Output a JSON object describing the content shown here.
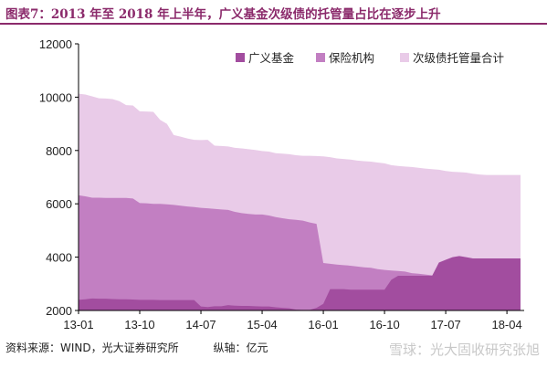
{
  "title": "图表7：2013 年至 2018 年上半年，广义基金次级债的托管量占比在逐步上升",
  "footer": {
    "source": "资料来源：WIND，光大证券研究所",
    "unit": "纵轴：亿元"
  },
  "watermark": "雪球：光大固收研究张旭",
  "colors": {
    "broad_fund": "#a24d9f",
    "insurance": "#c27fc2",
    "total": "#e9cbe8",
    "title": "#8b2a6b"
  },
  "chart_data": {
    "type": "area",
    "title": "",
    "xlabel": "",
    "ylabel": "",
    "ylim": [
      2000,
      12000
    ],
    "yticks": [
      2000,
      4000,
      6000,
      8000,
      10000,
      12000
    ],
    "x_ticklabels": [
      "13-01",
      "13-10",
      "14-07",
      "15-04",
      "16-01",
      "16-10",
      "17-07",
      "18-04"
    ],
    "x_tick_index": [
      0,
      9,
      18,
      27,
      36,
      45,
      54,
      63
    ],
    "legend": "top-right",
    "x": [
      "13-01",
      "13-02",
      "13-03",
      "13-04",
      "13-05",
      "13-06",
      "13-07",
      "13-08",
      "13-09",
      "13-10",
      "13-11",
      "13-12",
      "14-01",
      "14-02",
      "14-03",
      "14-04",
      "14-05",
      "14-06",
      "14-07",
      "14-08",
      "14-09",
      "14-10",
      "14-11",
      "14-12",
      "15-01",
      "15-02",
      "15-03",
      "15-04",
      "15-05",
      "15-06",
      "15-07",
      "15-08",
      "15-09",
      "15-10",
      "15-11",
      "15-12",
      "16-01",
      "16-02",
      "16-03",
      "16-04",
      "16-05",
      "16-06",
      "16-07",
      "16-08",
      "16-09",
      "16-10",
      "16-11",
      "16-12",
      "17-01",
      "17-02",
      "17-03",
      "17-04",
      "17-05",
      "17-06",
      "17-07",
      "17-08",
      "17-09",
      "17-10",
      "17-11",
      "17-12",
      "18-01",
      "18-02",
      "18-03",
      "18-04",
      "18-05",
      "18-06"
    ],
    "series": [
      {
        "name": "广义基金",
        "values": [
          2400,
          2420,
          2450,
          2440,
          2440,
          2430,
          2420,
          2420,
          2410,
          2400,
          2400,
          2400,
          2390,
          2390,
          2390,
          2390,
          2390,
          2390,
          2150,
          2130,
          2160,
          2160,
          2200,
          2180,
          2170,
          2170,
          2160,
          2150,
          2150,
          2120,
          2100,
          2080,
          2030,
          2020,
          2020,
          2100,
          2250,
          2800,
          2800,
          2800,
          2780,
          2780,
          2780,
          2780,
          2780,
          2780,
          3150,
          3300,
          3300,
          3300,
          3300,
          3300,
          3300,
          3800,
          3900,
          4000,
          4040,
          4000,
          3950,
          3950,
          3950,
          3950,
          3950,
          3950,
          3950,
          3950
        ]
      },
      {
        "name": "保险机构",
        "values": [
          6320,
          6280,
          6230,
          6230,
          6220,
          6220,
          6220,
          6220,
          6200,
          6030,
          6020,
          6000,
          6000,
          5980,
          5960,
          5930,
          5900,
          5880,
          5850,
          5830,
          5810,
          5790,
          5770,
          5700,
          5650,
          5620,
          5600,
          5600,
          5560,
          5500,
          5460,
          5420,
          5400,
          5370,
          5300,
          5250,
          3780,
          3750,
          3720,
          3700,
          3680,
          3650,
          3620,
          3600,
          3550,
          3520,
          3500,
          3480,
          3460,
          3400,
          3380,
          3350,
          3320,
          3300,
          3200,
          3100,
          3000,
          3000,
          2980,
          2960,
          2940,
          2920,
          2920,
          2920,
          2920,
          2920
        ]
      },
      {
        "name": "次级债托管量合计",
        "values": [
          10130,
          10100,
          10030,
          9960,
          9950,
          9930,
          9850,
          9700,
          9690,
          9470,
          9460,
          9450,
          9150,
          9000,
          8580,
          8520,
          8450,
          8400,
          8390,
          8400,
          8180,
          8170,
          8150,
          8100,
          8080,
          8050,
          8020,
          7980,
          7960,
          7900,
          7880,
          7860,
          7820,
          7800,
          7800,
          7790,
          7780,
          7750,
          7700,
          7680,
          7660,
          7620,
          7600,
          7580,
          7550,
          7520,
          7450,
          7420,
          7400,
          7380,
          7350,
          7320,
          7300,
          7280,
          7230,
          7200,
          7190,
          7170,
          7130,
          7100,
          7080,
          7080,
          7080,
          7080,
          7080,
          7080
        ]
      }
    ]
  }
}
